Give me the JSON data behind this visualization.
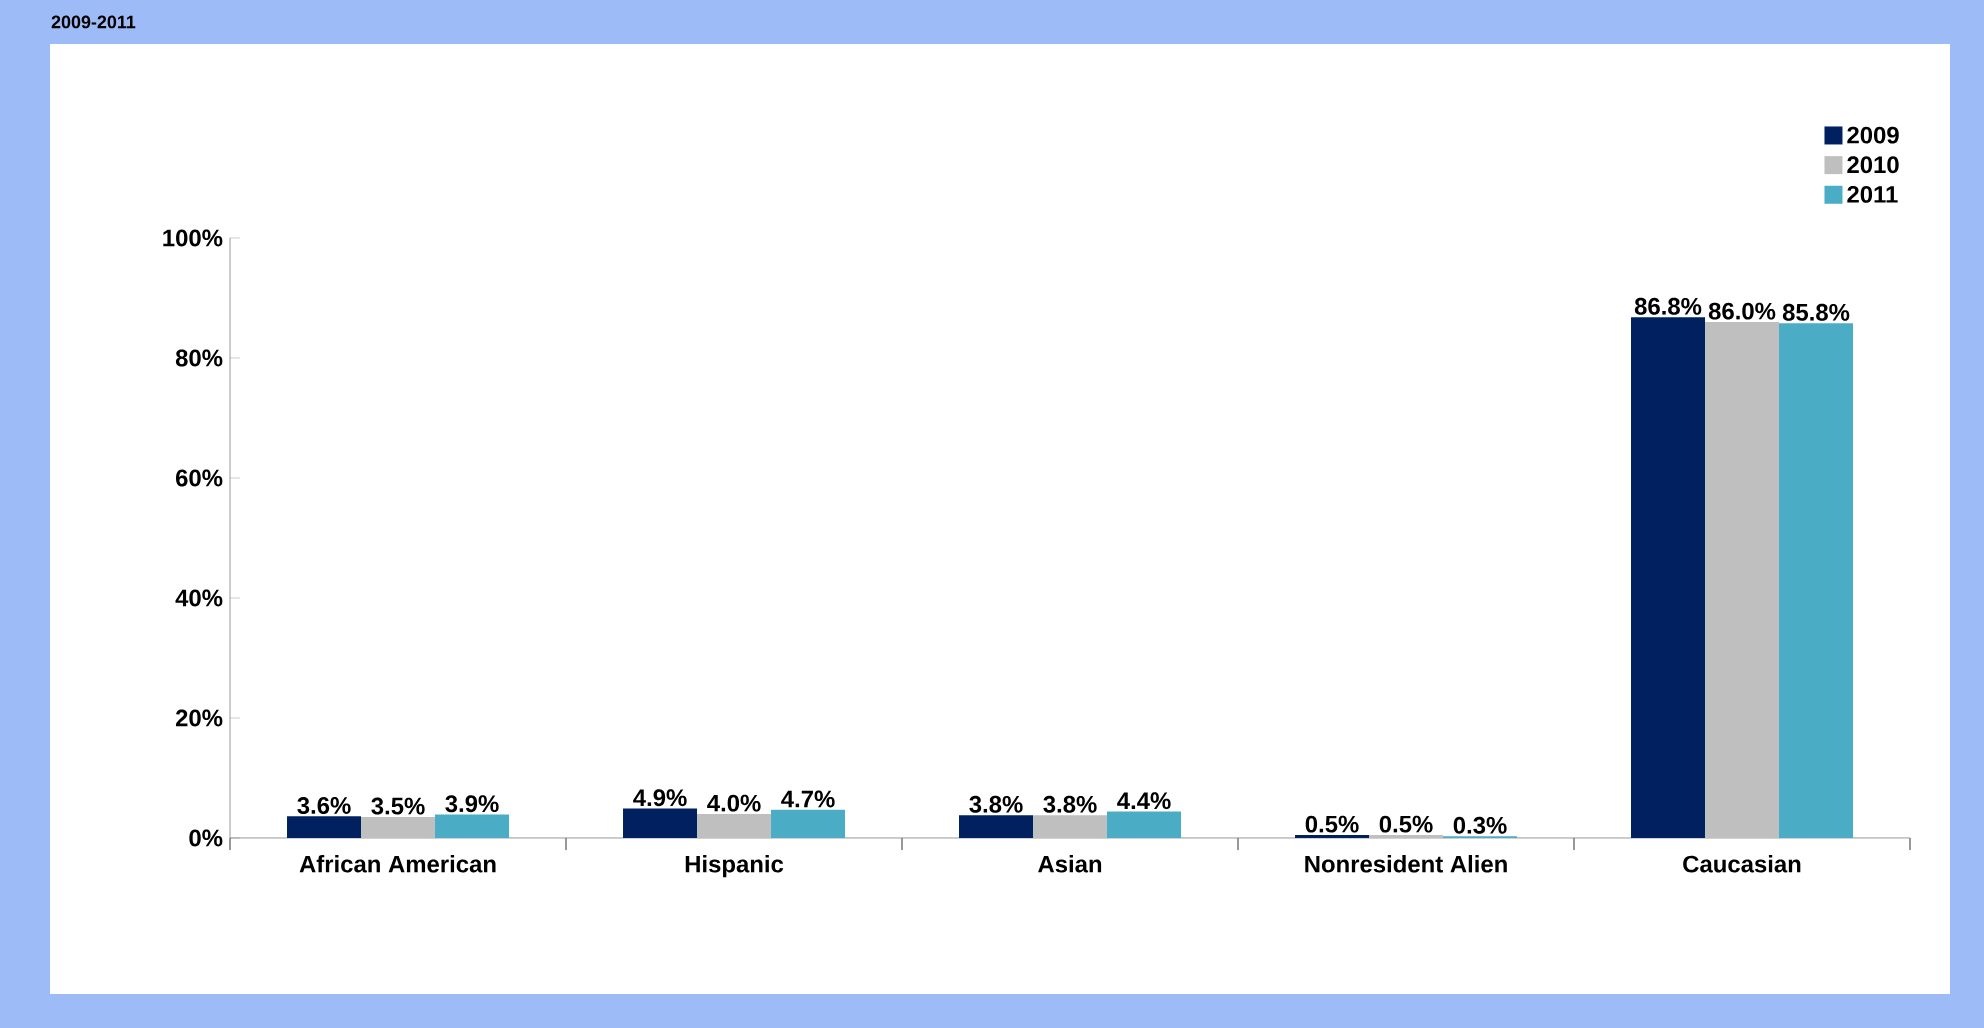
{
  "chart_data": {
    "type": "bar",
    "title": "2009-2011",
    "categories": [
      "African American",
      "Hispanic",
      "Asian",
      "Nonresident Alien",
      "Caucasian"
    ],
    "series": [
      {
        "name": "2009",
        "color": "#002060",
        "values": [
          3.6,
          4.9,
          3.8,
          0.5,
          86.8
        ],
        "value_labels": [
          "3.6%",
          "4.9%",
          "3.8%",
          "0.5%",
          "86.8%"
        ]
      },
      {
        "name": "2010",
        "color": "#bfbfbf",
        "values": [
          3.5,
          4.0,
          3.8,
          0.5,
          86.0
        ],
        "value_labels": [
          "3.5%",
          "4.0%",
          "3.8%",
          "0.5%",
          "86.0%"
        ]
      },
      {
        "name": "2011",
        "color": "#4bacc6",
        "values": [
          3.9,
          4.7,
          4.4,
          0.3,
          85.8
        ],
        "value_labels": [
          "3.9%",
          "4.7%",
          "4.4%",
          "0.3%",
          "85.8%"
        ]
      }
    ],
    "ylim": [
      0,
      100
    ],
    "yticks": [
      {
        "value": 0,
        "label": "0%"
      },
      {
        "value": 20,
        "label": "20%"
      },
      {
        "value": 40,
        "label": "40%"
      },
      {
        "value": 60,
        "label": "60%"
      },
      {
        "value": 80,
        "label": "80%"
      },
      {
        "value": 100,
        "label": "100%"
      }
    ],
    "grid": false,
    "legend": "top right"
  }
}
